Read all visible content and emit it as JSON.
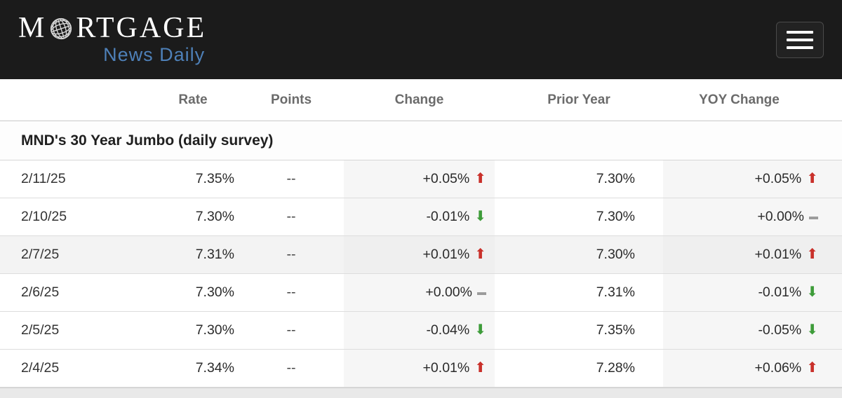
{
  "header": {
    "logo_m": "M",
    "logo_rest": "RTGAGE",
    "logo_line2": "News Daily"
  },
  "table": {
    "columns": [
      "",
      "Rate",
      "Points",
      "Change",
      "Prior Year",
      "YOY Change"
    ],
    "section_title": "MND's 30 Year Jumbo (daily survey)",
    "rows": [
      {
        "date": "2/11/25",
        "rate": "7.35%",
        "points": "--",
        "change": "+0.05%",
        "change_dir": "up",
        "prior_year": "7.30%",
        "yoy": "+0.05%",
        "yoy_dir": "up",
        "shaded": false
      },
      {
        "date": "2/10/25",
        "rate": "7.30%",
        "points": "--",
        "change": "-0.01%",
        "change_dir": "down",
        "prior_year": "7.30%",
        "yoy": "+0.00%",
        "yoy_dir": "flat",
        "shaded": false
      },
      {
        "date": "2/7/25",
        "rate": "7.31%",
        "points": "--",
        "change": "+0.01%",
        "change_dir": "up",
        "prior_year": "7.30%",
        "yoy": "+0.01%",
        "yoy_dir": "up",
        "shaded": true
      },
      {
        "date": "2/6/25",
        "rate": "7.30%",
        "points": "--",
        "change": "+0.00%",
        "change_dir": "flat",
        "prior_year": "7.31%",
        "yoy": "-0.01%",
        "yoy_dir": "down",
        "shaded": false
      },
      {
        "date": "2/5/25",
        "rate": "7.30%",
        "points": "--",
        "change": "-0.04%",
        "change_dir": "down",
        "prior_year": "7.35%",
        "yoy": "-0.05%",
        "yoy_dir": "down",
        "shaded": false
      },
      {
        "date": "2/4/25",
        "rate": "7.34%",
        "points": "--",
        "change": "+0.01%",
        "change_dir": "up",
        "prior_year": "7.28%",
        "yoy": "+0.06%",
        "yoy_dir": "up",
        "shaded": false
      }
    ]
  },
  "icons": {
    "up": "⬆",
    "down": "⬇",
    "flat": "▬"
  },
  "colors": {
    "up": "#c9302a",
    "down": "#3d9c39",
    "flat": "#9b9b9b",
    "header_bg": "#1b1b1b",
    "tagline_blue": "#4e80b8"
  }
}
